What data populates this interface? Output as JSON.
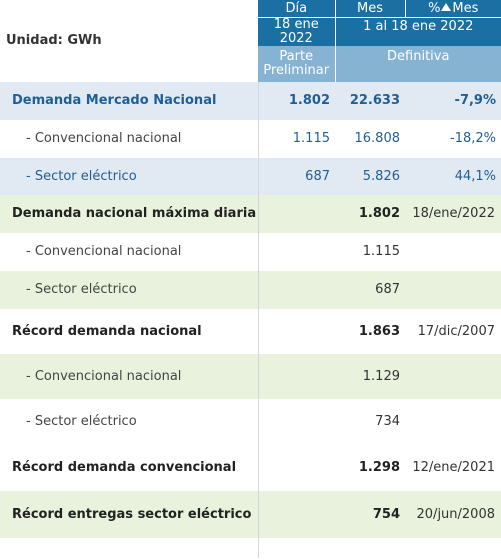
{
  "unit_label": "Unidad: GWh",
  "header": {
    "dia": "Día",
    "mes": "Mes",
    "pct_prefix": "%",
    "pct_suffix": "Mes",
    "dia_date_line1": "18 ene",
    "dia_date_line2": "2022",
    "mes_range": "1 al 18 ene 2022",
    "dia_status_line1": "Parte",
    "dia_status_line2": "Preliminar",
    "mes_status": "Definitiva"
  },
  "rows": [
    {
      "label": "Demanda Mercado Nacional",
      "dia": "1.802",
      "mes": "22.633",
      "pct": "-7,9%"
    },
    {
      "label": "- Convencional nacional",
      "dia": "1.115",
      "mes": "16.808",
      "pct": "-18,2%"
    },
    {
      "label": "- Sector eléctrico",
      "dia": "687",
      "mes": "5.826",
      "pct": "44,1%"
    },
    {
      "label": "Demanda nacional máxima diaria",
      "dia": "",
      "mes": "1.802",
      "pct": "18/ene/2022"
    },
    {
      "label": "- Convencional nacional",
      "dia": "",
      "mes": "1.115",
      "pct": ""
    },
    {
      "label": "- Sector eléctrico",
      "dia": "",
      "mes": "687",
      "pct": ""
    },
    {
      "label": "Récord demanda nacional",
      "dia": "",
      "mes": "1.863",
      "pct": "17/dic/2007"
    },
    {
      "label": "- Convencional nacional",
      "dia": "",
      "mes": "1.129",
      "pct": ""
    },
    {
      "label": "- Sector eléctrico",
      "dia": "",
      "mes": "734",
      "pct": ""
    },
    {
      "label": "Récord demanda convencional",
      "dia": "",
      "mes": "1.298",
      "pct": "12/ene/2021"
    },
    {
      "label": "Récord entregas sector eléctrico",
      "dia": "",
      "mes": "754",
      "pct": "20/jun/2008"
    }
  ]
}
